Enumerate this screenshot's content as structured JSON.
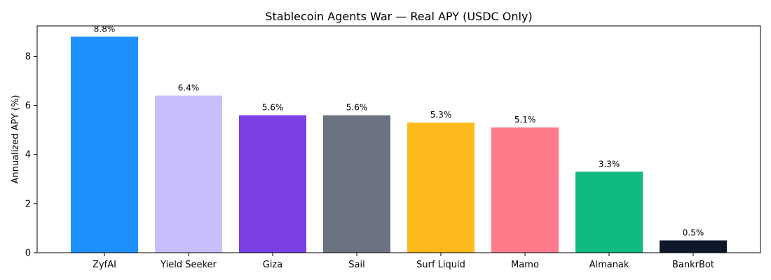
{
  "chart_data": {
    "type": "bar",
    "title": "Stablecoin Agents War — Real APY (USDC Only)",
    "xlabel": "",
    "ylabel": "Annualized APY (%)",
    "ylim": [
      0,
      9.24
    ],
    "yticks": [
      0,
      2,
      4,
      6,
      8
    ],
    "grid": false,
    "legend": "none",
    "categories": [
      "ZyfAI",
      "Yield Seeker",
      "Giza",
      "Sail",
      "Surf Liquid",
      "Mamo",
      "Almanak",
      "BankrBot"
    ],
    "values": [
      8.8,
      6.4,
      5.6,
      5.6,
      5.3,
      5.1,
      3.3,
      0.5
    ],
    "data_labels": [
      "8.8%",
      "6.4%",
      "5.6%",
      "5.6%",
      "5.3%",
      "5.1%",
      "3.3%",
      "0.5%"
    ],
    "colors": [
      "#1E90FF",
      "#C9BDFB",
      "#7B3FE4",
      "#6B7280",
      "#FDBA1C",
      "#FF7A8A",
      "#10B981",
      "#0F172A"
    ]
  }
}
